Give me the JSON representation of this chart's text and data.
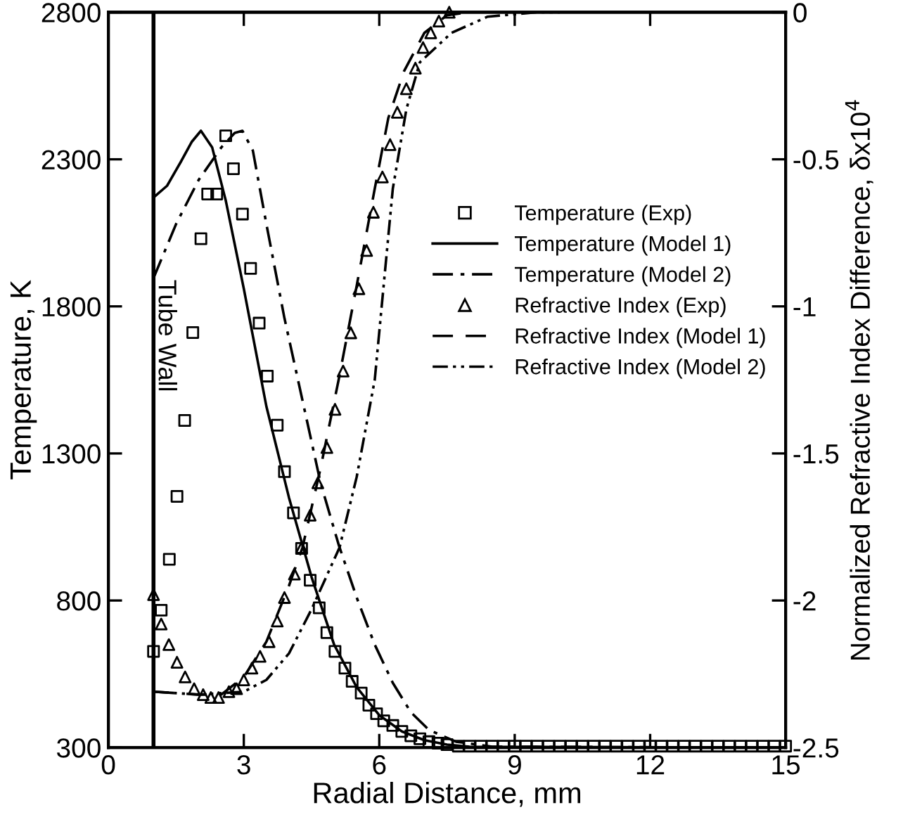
{
  "chart_data": {
    "type": "line",
    "xlabel": "Radial Distance, mm",
    "ylabel": "Temperature, K",
    "y2label": "Normalized Refractive Index Difference, δx10$^{4}$",
    "xlim": [
      0,
      15
    ],
    "xticks": [
      0,
      3,
      6,
      9,
      12,
      15
    ],
    "ylim": [
      300,
      2800
    ],
    "yticks": [
      300,
      800,
      1300,
      1800,
      2300,
      2800
    ],
    "y2lim": [
      -2.5,
      0
    ],
    "y2ticks": [
      {
        "value": -2.5,
        "label": "-2.5"
      },
      {
        "value": -2,
        "label": "-2"
      },
      {
        "value": -1.5,
        "label": "-1.5"
      },
      {
        "value": -1,
        "label": "-1"
      },
      {
        "value": -0.5,
        "label": "-0.5"
      },
      {
        "value": 0,
        "label": "0"
      }
    ],
    "grid": false,
    "legend": "right",
    "ref_lines": [
      {
        "axis": "x",
        "value": 1,
        "label": "Tube Wall",
        "color": "#000000",
        "line_style": "solid"
      }
    ],
    "series": [
      {
        "name": "Temperature (Exp)",
        "type": "scatter",
        "marker": "square",
        "color": "#000000",
        "x": [
          1.0,
          1.17,
          1.35,
          1.52,
          1.69,
          1.87,
          2.05,
          2.2,
          2.4,
          2.6,
          2.77,
          2.97,
          3.15,
          3.34,
          3.52,
          3.74,
          3.9,
          4.1,
          4.28,
          4.47,
          4.67,
          4.84,
          5.02,
          5.24,
          5.4,
          5.6,
          5.77,
          5.94,
          6.1,
          6.3,
          6.5,
          6.7,
          6.9,
          7.1,
          7.3,
          7.5,
          7.75,
          8.0,
          8.25,
          8.5,
          8.75,
          9.0,
          9.25,
          9.5,
          9.75,
          10.0,
          10.25,
          10.5,
          10.75,
          11.0,
          11.25,
          11.5,
          11.75,
          12.0,
          12.25,
          12.5,
          12.75,
          13.0,
          13.25,
          13.5,
          13.75,
          14.0,
          14.25,
          14.5,
          14.75,
          15.0
        ],
        "values": [
          627,
          767,
          940,
          1154,
          1412,
          1711,
          2030,
          2182,
          2182,
          2380,
          2268,
          2114,
          1929,
          1743,
          1563,
          1396,
          1238,
          1098,
          977,
          869,
          775,
          691,
          627,
          570,
          525,
          485,
          444,
          415,
          391,
          375,
          355,
          340,
          330,
          320,
          315,
          310,
          305,
          305,
          305,
          305,
          305,
          305,
          305,
          305,
          305,
          305,
          305,
          305,
          305,
          305,
          305,
          305,
          305,
          305,
          305,
          305,
          305,
          305,
          305,
          305,
          305,
          305,
          305,
          305,
          305,
          305
        ]
      },
      {
        "name": "Temperature (Model 1)",
        "marker": "none",
        "line_style": "solid",
        "color": "#000000",
        "x": [
          1,
          1.3,
          1.6,
          1.85,
          2.05,
          2.3,
          2.6,
          3.0,
          3.5,
          4.0,
          4.5,
          5.0,
          5.5,
          6.0,
          6.5,
          7.0,
          7.5,
          8,
          15
        ],
        "values": [
          2170,
          2210,
          2290,
          2360,
          2397,
          2340,
          2160,
          1860,
          1460,
          1150,
          880,
          650,
          505,
          410,
          355,
          325,
          310,
          303,
          300
        ]
      },
      {
        "name": "Temperature (Model 2)",
        "marker": "none",
        "line_style": "dashdot",
        "color": "#000000",
        "x": [
          1,
          1.5,
          2.0,
          2.5,
          2.8,
          2.97,
          3.2,
          3.5,
          3.9,
          4.3,
          4.7,
          5.1,
          5.5,
          5.9,
          6.3,
          6.7,
          7.1,
          7.7,
          8.5,
          15
        ],
        "values": [
          1896,
          2080,
          2230,
          2340,
          2390,
          2397,
          2330,
          2080,
          1760,
          1480,
          1200,
          990,
          810,
          650,
          520,
          420,
          360,
          320,
          303,
          300
        ]
      },
      {
        "name": "Refractive Index (Exp)",
        "type": "scatter",
        "axis": "y2",
        "marker": "triangle",
        "color": "#000000",
        "x": [
          1.0,
          1.17,
          1.34,
          1.52,
          1.7,
          1.9,
          2.1,
          2.27,
          2.44,
          2.67,
          2.84,
          3.0,
          3.18,
          3.36,
          3.56,
          3.74,
          3.9,
          4.12,
          4.28,
          4.47,
          4.64,
          4.84,
          5.02,
          5.2,
          5.37,
          5.55,
          5.72,
          5.87,
          6.07,
          6.24,
          6.4,
          6.6,
          6.8,
          6.97,
          7.14,
          7.32,
          7.55
        ],
        "values": [
          -1.98,
          -2.08,
          -2.15,
          -2.21,
          -2.26,
          -2.3,
          -2.32,
          -2.33,
          -2.33,
          -2.31,
          -2.3,
          -2.27,
          -2.23,
          -2.19,
          -2.14,
          -2.07,
          -1.99,
          -1.91,
          -1.82,
          -1.71,
          -1.6,
          -1.48,
          -1.35,
          -1.22,
          -1.09,
          -0.94,
          -0.81,
          -0.68,
          -0.56,
          -0.45,
          -0.34,
          -0.26,
          -0.19,
          -0.12,
          -0.07,
          -0.03,
          0.0
        ]
      },
      {
        "name": "Refractive Index (Model 1)",
        "axis": "y2",
        "marker": "none",
        "line_style": "dashed",
        "color": "#000000",
        "x": [
          1,
          2,
          2.5,
          3,
          3.5,
          4,
          4.3,
          4.7,
          5.1,
          5.5,
          5.9,
          6.2,
          6.55,
          7,
          7.5,
          8
        ],
        "values": [
          -2.31,
          -2.32,
          -2.32,
          -2.26,
          -2.14,
          -1.95,
          -1.82,
          -1.55,
          -1.25,
          -0.93,
          -0.6,
          -0.36,
          -0.2,
          -0.07,
          -0.01,
          0.0
        ]
      },
      {
        "name": "Refractive Index (Model 2)",
        "axis": "y2",
        "marker": "none",
        "line_style": "dashdotdot",
        "color": "#000000",
        "x": [
          1,
          2,
          3,
          3.5,
          4,
          4.5,
          5.12,
          5.5,
          5.9,
          6.3,
          6.6,
          6.9,
          7.6,
          8.4,
          9.5,
          10
        ],
        "values": [
          -2.31,
          -2.32,
          -2.31,
          -2.27,
          -2.18,
          -2.03,
          -1.82,
          -1.58,
          -1.25,
          -0.6,
          -0.33,
          -0.17,
          -0.07,
          -0.015,
          0.0,
          0.0
        ]
      }
    ]
  }
}
